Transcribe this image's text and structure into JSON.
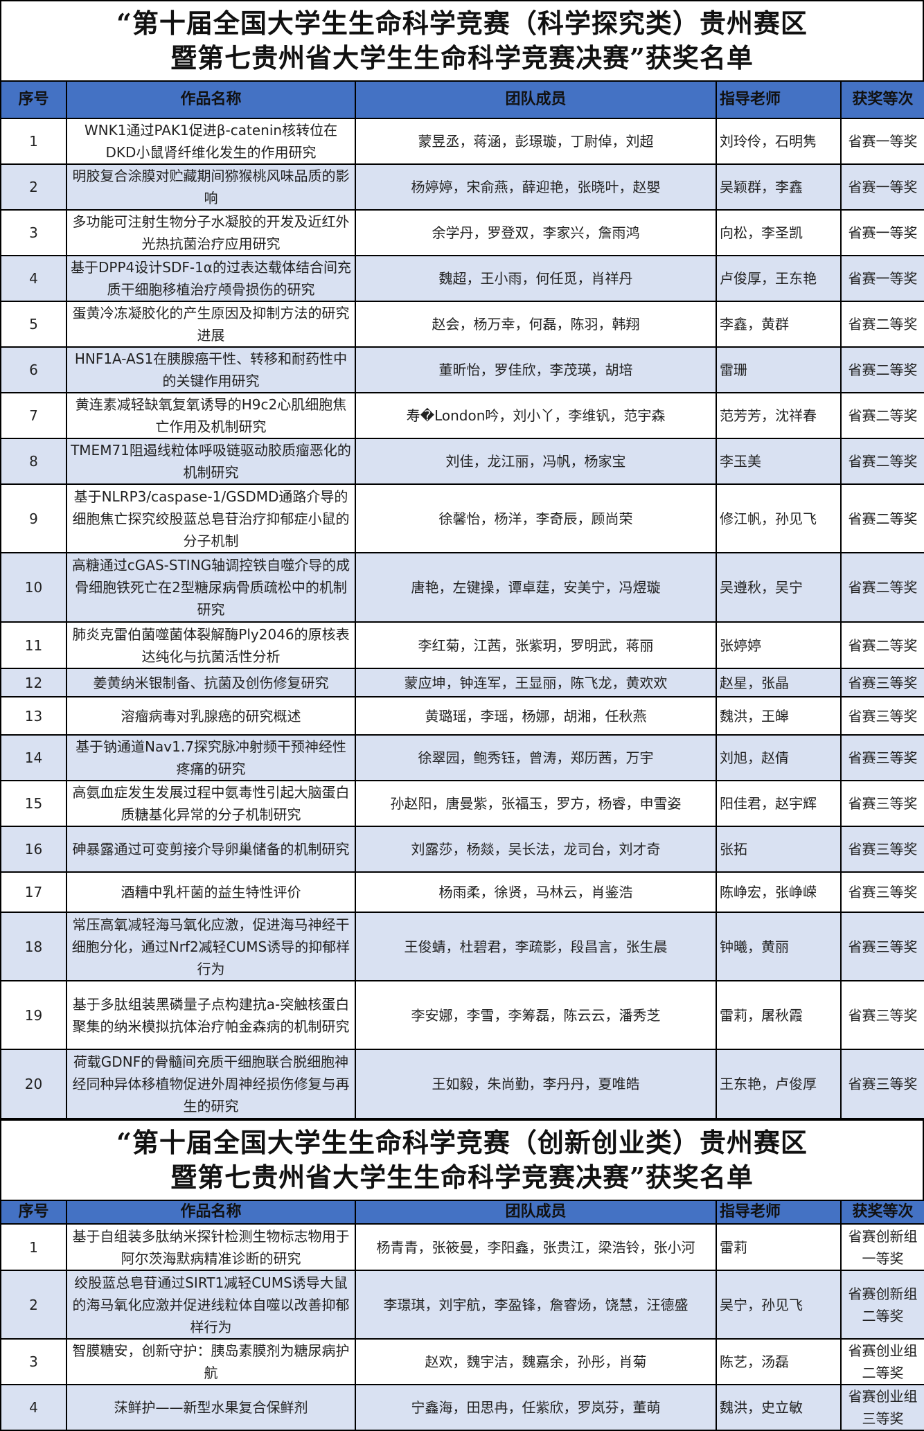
{
  "colors": {
    "header_bg": "#4472C4",
    "alt_row_bg": "#D9E1F2",
    "border": "#000000"
  },
  "columns": [
    "序号",
    "作品名称",
    "团队成员",
    "指导老师",
    "获奖等次"
  ],
  "section1": {
    "title_line1": "“第十届全国大学生生命科学竞赛（科学探究类）贵州赛区",
    "title_line2": "暨第七贵州省大学生生命科学竞赛决赛”获奖名单",
    "rows": [
      {
        "no": "1",
        "title": "WNK1通过PAK1促进β-catenin核转位在DKD小鼠肾纤维化发生的作用研究",
        "members": "蒙昱丞，蒋涵，彭璟璇，丁尉倬，刘超",
        "advisor": "刘玲伶，石明隽",
        "award": "省赛一等奖"
      },
      {
        "no": "2",
        "title": "明胶复合涂膜对贮藏期间猕猴桃风味品质的影响",
        "members": "杨婷婷，宋俞燕，薛迎艳，张晓叶，赵嬰",
        "advisor": "吴颖群，李鑫",
        "award": "省赛一等奖"
      },
      {
        "no": "3",
        "title": "多功能可注射生物分子水凝胶的开发及近红外光热抗菌治疗应用研究",
        "members": "余学丹，罗登双，李家兴，詹雨鸿",
        "advisor": "向松，李圣凯",
        "award": "省赛一等奖"
      },
      {
        "no": "4",
        "title": "基于DPP4设计SDF-1α的过表达载体结合间充质干细胞移植治疗颅骨损伤的研究",
        "members": "魏超，王小雨，何任觅，肖祥丹",
        "advisor": "卢俊厚，王东艳",
        "award": "省赛一等奖"
      },
      {
        "no": "5",
        "title": "蛋黄冷冻凝胶化的产生原因及抑制方法的研究进展",
        "members": "赵会，杨万幸，何磊，陈羽，韩翔",
        "advisor": "李鑫，黄群",
        "award": "省赛二等奖"
      },
      {
        "no": "6",
        "title": "HNF1A-AS1在胰腺癌干性、转移和耐药性中的关键作用研究",
        "members": "董昕怡，罗佳欣，李茂瑛，胡培",
        "advisor": "雷珊",
        "award": "省赛二等奖"
      },
      {
        "no": "7",
        "title": "黄连素减轻缺氧复氧诱导的H9c2心肌细胞焦亡作用及机制研究",
        "members": "寿�London吟，刘小丫，李维钒，范宇森",
        "advisor": "范芳芳，沈祥春",
        "award": "省赛二等奖"
      },
      {
        "no": "8",
        "title": "TMEM71阻遏线粒体呼吸链驱动胶质瘤恶化的机制研究",
        "members": "刘佳，龙江丽，冯帆，杨家宝",
        "advisor": "李玉美",
        "award": "省赛二等奖"
      },
      {
        "no": "9",
        "title": "基于NLRP3/caspase-1/GSDMD通路介导的细胞焦亡探究绞股蓝总皂苷治疗抑郁症小鼠的分子机制",
        "members": "徐馨怡，杨洋，李奇辰，顾尚荣",
        "advisor": "修江帆，孙见飞",
        "award": "省赛二等奖"
      },
      {
        "no": "10",
        "title": "高糖通过cGAS-STING轴调控铁自噬介导的成骨细胞铁死亡在2型糖尿病骨质疏松中的机制研究",
        "members": "唐艳，左键操，谭卓莛，安美宁，冯煜璇",
        "advisor": "吴遵秋，吴宁",
        "award": "省赛二等奖"
      },
      {
        "no": "11",
        "title": "肺炎克雷伯菌噬菌体裂解酶Ply2046的原核表达纯化与抗菌活性分析",
        "members": "李红菊，江茜，张紫玥，罗明武，蒋丽",
        "advisor": "张婷婷",
        "award": "省赛二等奖"
      },
      {
        "no": "12",
        "title": "姜黄纳米银制备、抗菌及创伤修复研究",
        "members": "蒙应坤，钟连军，王显丽，陈飞龙，黄欢欢",
        "advisor": "赵星，张晶",
        "award": "省赛三等奖"
      },
      {
        "no": "13",
        "title": "溶瘤病毒对乳腺癌的研究概述",
        "members": "黄璐瑶，李瑶，杨娜，胡湘，任秋燕",
        "advisor": "魏洪，王皞",
        "award": "省赛三等奖"
      },
      {
        "no": "14",
        "title": "基于钠通道Nav1.7探究脉冲射频干预神经性疼痛的研究",
        "members": "徐翠园，鲍秀钰，曾涛，郑历茜，万宇",
        "advisor": "刘旭，赵倩",
        "award": "省赛三等奖"
      },
      {
        "no": "15",
        "title": "高氨血症发生发展过程中氨毒性引起大脑蛋白质糖基化异常的分子机制研究",
        "members": "孙赵阳，唐曼紫，张福玉，罗方，杨睿，申雪姿",
        "advisor": "阳佳君，赵宇辉",
        "award": "省赛三等奖"
      },
      {
        "no": "16",
        "title": "砷暴露通过可变剪接介导卵巢储备的机制研究",
        "members": "刘露莎，杨燚，吴长法，龙司台，刘才奇",
        "advisor": "张拓",
        "award": "省赛三等奖"
      },
      {
        "no": "17",
        "title": "酒糟中乳杆菌的益生特性评价",
        "members": "杨雨柔，徐贤，马林云，肖鉴浩",
        "advisor": "陈峥宏，张峥嵘",
        "award": "省赛三等奖"
      },
      {
        "no": "18",
        "title": "常压高氧减轻海马氧化应激，促进海马神经干细胞分化，通过Nrf2减轻CUMS诱导的抑郁样行为",
        "members": "王俊蜻，杜碧君，李疏影，段昌言，张生晨",
        "advisor": "钟曦，黄丽",
        "award": "省赛三等奖"
      },
      {
        "no": "19",
        "title": "基于多肽组装黑磷量子点构建抗a-突触核蛋白聚集的纳米模拟抗体治疗帕金森病的机制研究",
        "members": "李安娜，李雪，李筹磊，陈云云，潘秀芝",
        "advisor": "雷莉，屠秋霞",
        "award": "省赛三等奖"
      },
      {
        "no": "20",
        "title": "荷载GDNF的骨髓间充质干细胞联合脱细胞神经同种异体移植物促进外周神经损伤修复与再生的研究",
        "members": "王如毅，朱尚勤，李丹丹，夏唯皓",
        "advisor": "王东艳，卢俊厚",
        "award": "省赛三等奖"
      }
    ]
  },
  "section2": {
    "title_line1": "“第十届全国大学生生命科学竞赛（创新创业类）贵州赛区",
    "title_line2": "暨第七贵州省大学生生命科学竞赛决赛”获奖名单",
    "rows": [
      {
        "no": "1",
        "title": "基于自组装多肽纳米探针检测生物标志物用于阿尔茨海默病精准诊断的研究",
        "members": "杨青青，张筱曼，李阳鑫，张贵江，梁浩铃，张小河",
        "advisor": "雷莉",
        "award": "省赛创新组一等奖"
      },
      {
        "no": "2",
        "title": "绞股蓝总皂苷通过SIRT1减轻CUMS诱导大鼠的海马氧化应激并促进线粒体自噬以改善抑郁样行为",
        "members": "李璟琪，刘宇航，李盈锋，詹睿炀，饶慧，汪德盛",
        "advisor": "吴宁，孙见飞",
        "award": "省赛创新组二等奖"
      },
      {
        "no": "3",
        "title": "智膜糖安，创新守护：胰岛素膜剂为糖尿病护航",
        "members": "赵欢，魏宇洁，魏嘉余，孙彤，肖菊",
        "advisor": "陈艺，汤磊",
        "award": "省赛创业组二等奖"
      },
      {
        "no": "4",
        "title": "莯鲜护——新型水果复合保鲜剂",
        "members": "宁鑫海，田思冉，任紫欣，罗岚芬，董萌",
        "advisor": "魏洪，史立敏",
        "award": "省赛创业组三等奖"
      }
    ]
  }
}
